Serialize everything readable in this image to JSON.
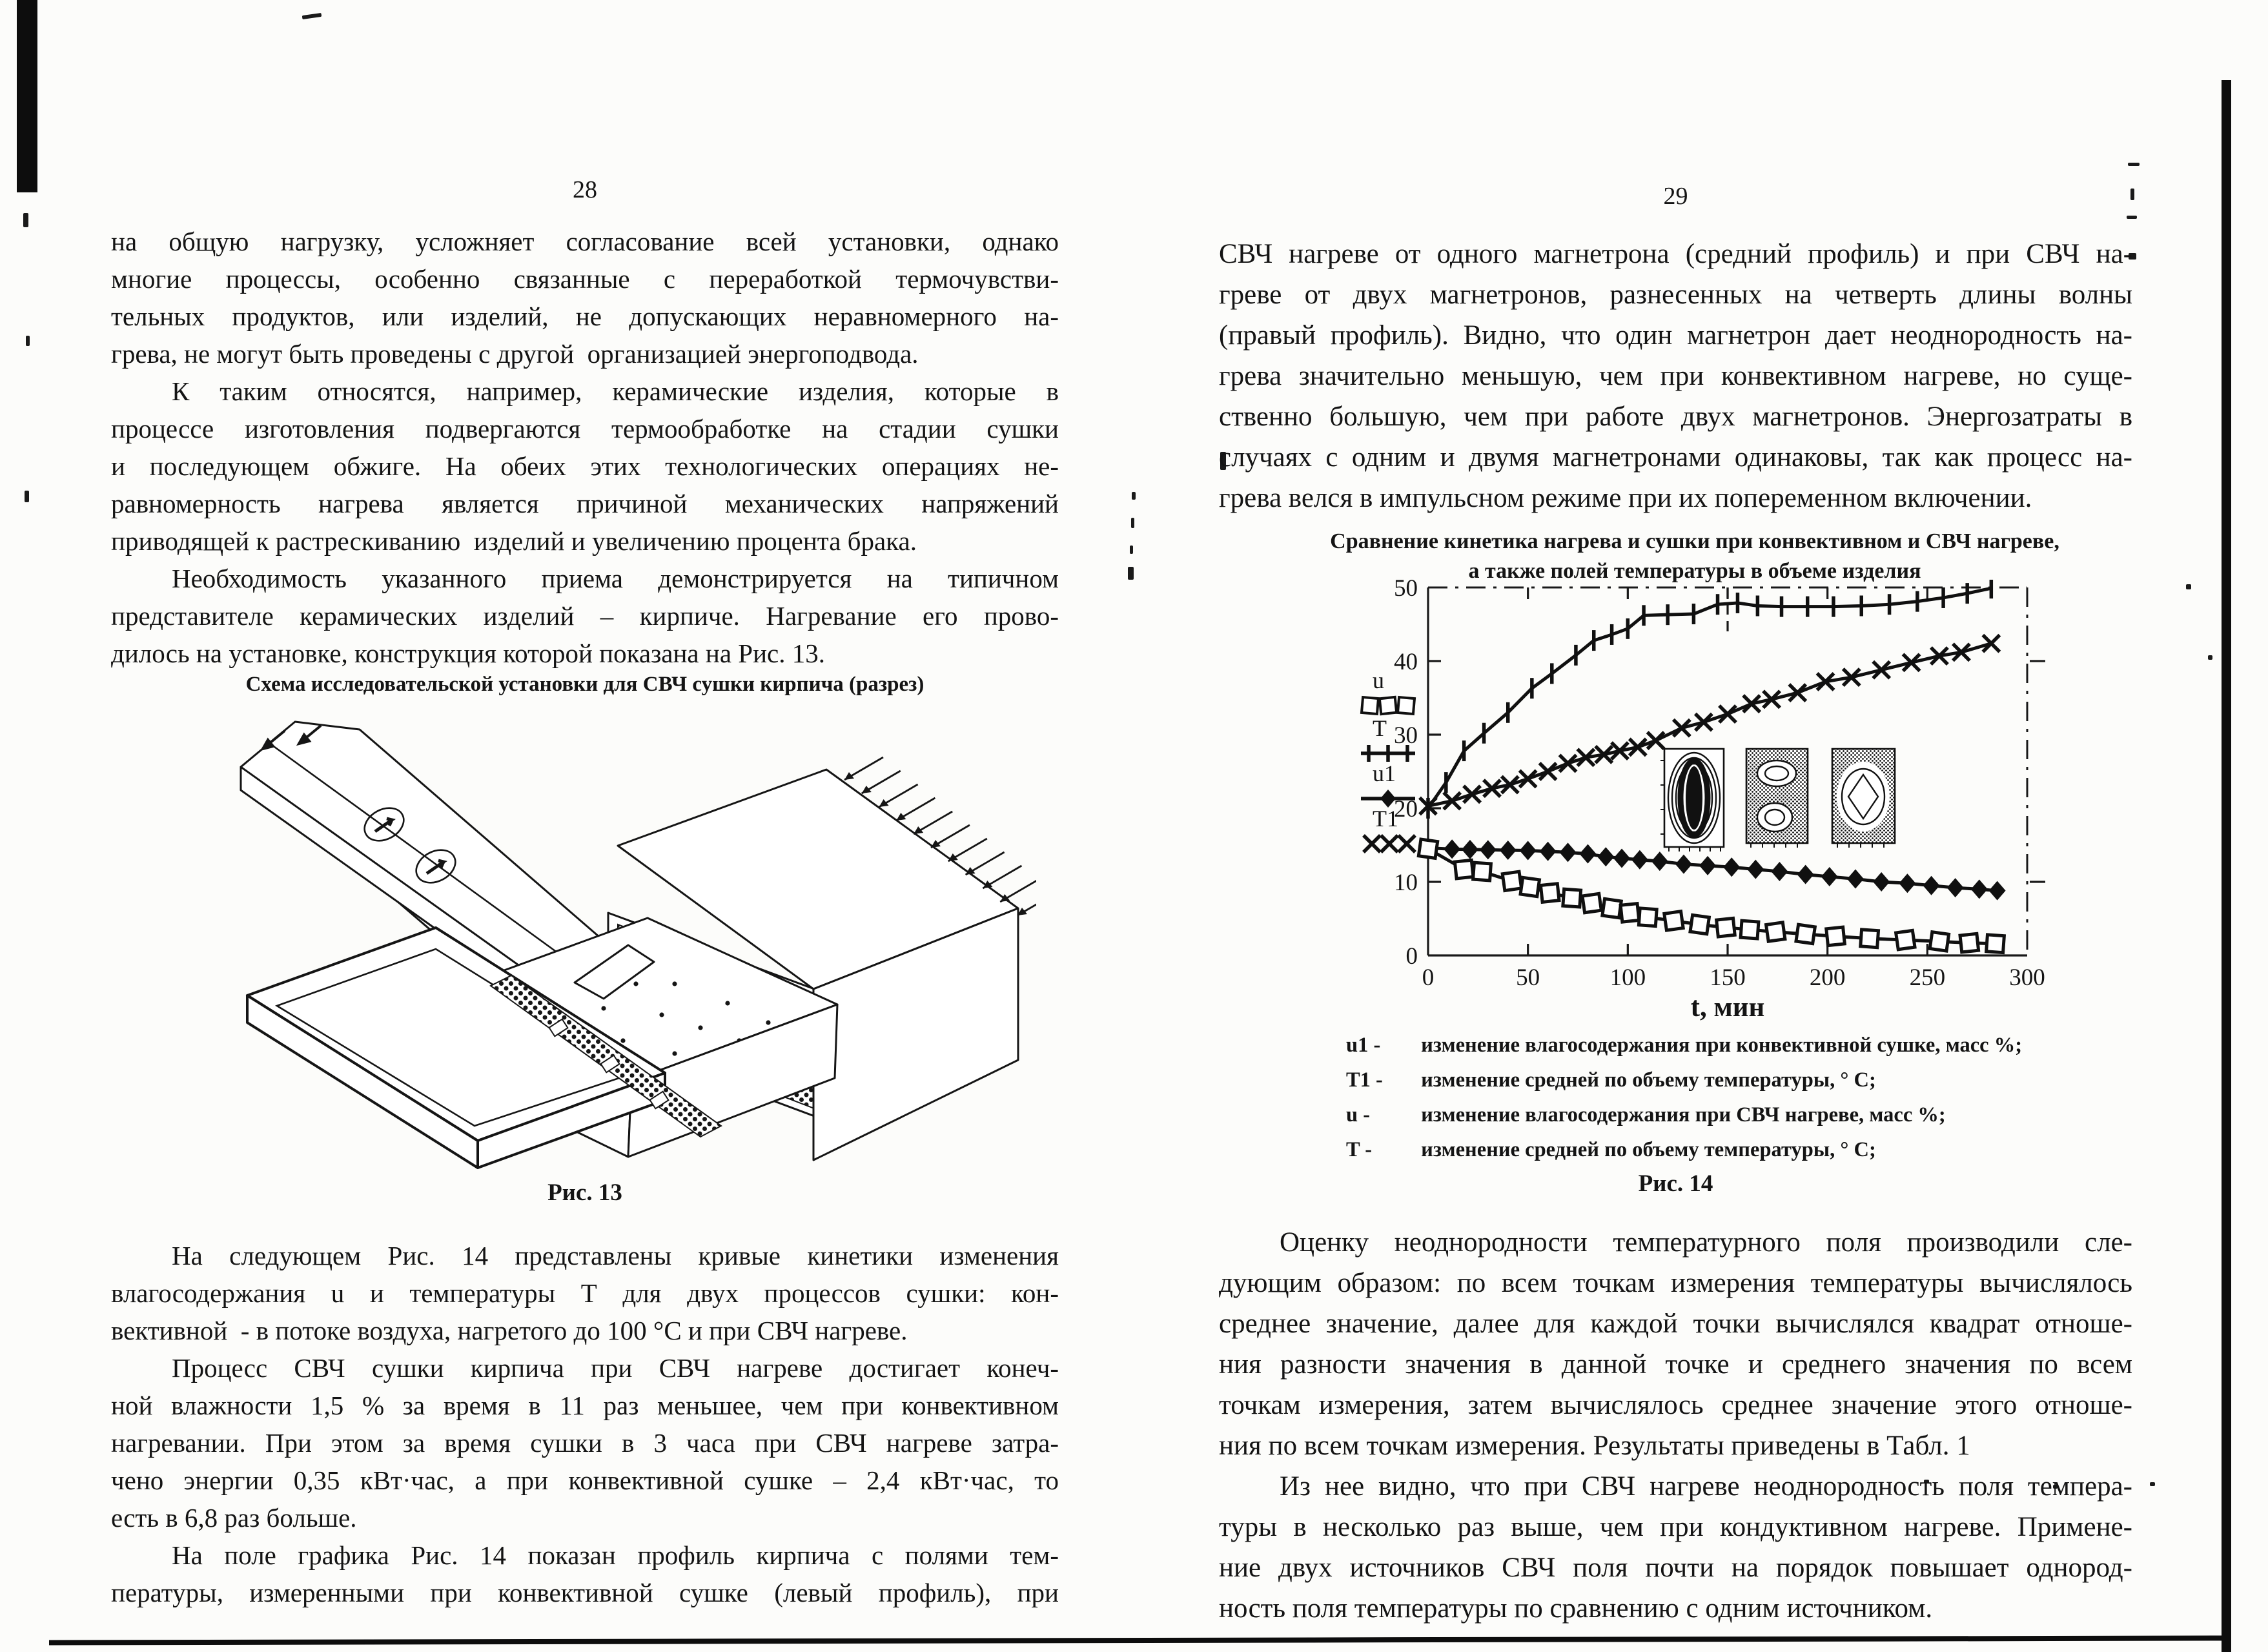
{
  "left_page": {
    "page_number": "28",
    "para1": [
      {
        "text": "на общую нагрузку, усложняет согласование всей установки, однако"
      },
      {
        "text": "многие процессы, особенно связанные с переработкой термочувстви-"
      },
      {
        "text": "тельных продуктов, или изделий, не допускающих неравномерного на-"
      },
      {
        "text": "грева, не могут быть проведены с другой  организацией энергоподвода.",
        "last": true
      },
      {
        "text": "К таким относятся, например, керамические изделия, которые в",
        "indent": true
      },
      {
        "text": "процессе изготовления подвергаются термообработке на стадии сушки"
      },
      {
        "text": "и последующем обжиге. На обеих этих технологических операциях не-"
      },
      {
        "text": "равномерность нагрева является причиной механических напряжений"
      },
      {
        "text": "приводящей к растрескиванию  изделий и увеличению процента брака.",
        "last": true
      },
      {
        "text": "Необходимость указанного приема демонстрируется на типичном",
        "indent": true
      },
      {
        "text": "представителе керамических изделий – кирпиче. Нагревание его прово-"
      },
      {
        "text": "дилось на установке, конструкция которой показана на Рис. 13.",
        "last": true
      }
    ],
    "figure13": {
      "caption": "Схема исследовательской установки для СВЧ сушки кирпича (разрез)",
      "label": "Рис. 13"
    },
    "para2": [
      {
        "text": "На следующем Рис. 14 представлены кривые кинетики изменения",
        "indent": true
      },
      {
        "text": "влагосодержания u и температуры Т для двух процессов сушки: кон-"
      },
      {
        "text": "вективной  - в потоке воздуха, нагретого до 100 °С и при СВЧ нагреве.",
        "last": true
      },
      {
        "text": "Процесс СВЧ сушки кирпича при СВЧ нагреве достигает конеч-",
        "indent": true
      },
      {
        "text": "ной влажности 1,5 % за время в 11 раз меньшее, чем при конвективном"
      },
      {
        "text": "нагревании. При этом за время сушки в 3 часа при СВЧ нагреве затра-"
      },
      {
        "text": "чено энергии 0,35 кВт·час, а при конвективной сушке – 2,4 кВт·час, то"
      },
      {
        "text": "есть в 6,8 раз больше.",
        "last": true
      },
      {
        "text": "На поле графика Рис. 14 показан профиль кирпича с полями тем-",
        "indent": true
      },
      {
        "text": "пературы, измеренными при конвективной сушке (левый профиль), при"
      }
    ]
  },
  "right_page": {
    "page_number": "29",
    "para1": [
      {
        "text": "СВЧ нагреве от одного магнетрона (средний профиль) и при СВЧ на-"
      },
      {
        "text": "греве от двух магнетронов, разнесенных на четверть длины волны"
      },
      {
        "text": "(правый профиль). Видно, что один магнетрон дает неоднородность на-"
      },
      {
        "text": "грева значительно меньшую, чем при конвективном нагреве, но суще-"
      },
      {
        "text": "ственно большую, чем при работе двух магнетронов. Энергозатраты в"
      },
      {
        "text": "случаях с одним и двумя магнетронами одинаковы, так как процесс на-"
      },
      {
        "text": "грева велся в импульсном режиме при их попеременном включении.",
        "last": true
      }
    ],
    "figure14": {
      "title_line1": "Сравнение кинетика нагрева и сушки при конвективном и СВЧ нагреве,",
      "title_line2": "а также полей температуры в объеме изделия",
      "label": "Рис. 14",
      "legend_items": [
        {
          "key": "u1 -",
          "text": "изменение влагосодержания при конвективной сушке, масс %;"
        },
        {
          "key": "T1 -",
          "text": "изменение средней по объему температуры, ° С;"
        },
        {
          "key": "u  -",
          "text": "изменение влагосодержания при СВЧ нагреве, масс %;"
        },
        {
          "key": "T -",
          "text": "изменение средней по объему температуры, ° С;"
        }
      ]
    },
    "para2": [
      {
        "text": "Оценку неоднородности температурного поля производили сле-",
        "indent": true
      },
      {
        "text": "дующим образом: по всем точкам измерения температуры вычислялось"
      },
      {
        "text": "среднее значение, далее для каждой точки вычислялся квадрат отноше-"
      },
      {
        "text": "ния разности значения в данной точке и среднего значения по всем"
      },
      {
        "text": "точкам измерения, затем вычислялось среднее значение этого отноше-"
      },
      {
        "text": "ния по всем точкам измерения. Результаты приведены в Табл. 1",
        "last": true
      },
      {
        "text": "Из нее видно, что при СВЧ нагреве неоднородность поля темпера-",
        "indent": true
      },
      {
        "text": "туры в несколько раз выше, чем при кондуктивном нагреве. Примене-"
      },
      {
        "text": "ние двух источников СВЧ поля почти на порядок повышает однород-"
      },
      {
        "text": "ность поля температуры по сравнению с одним источником.",
        "last": true
      }
    ]
  },
  "chart_data": {
    "type": "line",
    "title": "Сравнение кинетика нагрева и сушки при конвективном и СВЧ нагреве, а также полей температуры в объеме изделия",
    "xlabel": "t, мин",
    "ylabel": "",
    "xlim": [
      0,
      300
    ],
    "ylim": [
      0,
      50
    ],
    "x_ticks": [
      0,
      50,
      100,
      150,
      200,
      250,
      300
    ],
    "y_ticks": [
      0,
      10,
      20,
      30,
      40,
      50
    ],
    "grid": false,
    "legend_position": "left",
    "legend": [
      {
        "label": "u",
        "marker": "square"
      },
      {
        "label": "T",
        "marker": "plus"
      },
      {
        "label": "u1",
        "marker": "diamond"
      },
      {
        "label": "T1",
        "marker": "x"
      }
    ],
    "series": [
      {
        "name": "T",
        "marker": "plus",
        "description": "изменение средней по объему температуры при СВЧ нагреве, ° С",
        "points": [
          [
            0,
            20
          ],
          [
            9,
            23.5
          ],
          [
            18,
            27.8
          ],
          [
            28,
            30.2
          ],
          [
            40,
            33
          ],
          [
            52,
            36.3
          ],
          [
            62,
            38.3
          ],
          [
            74,
            40.8
          ],
          [
            83,
            42.8
          ],
          [
            92,
            43.6
          ],
          [
            100,
            44.4
          ],
          [
            108,
            46.2
          ],
          [
            120,
            46.3
          ],
          [
            133,
            46.4
          ],
          [
            145,
            47.7
          ],
          [
            155,
            47.9
          ],
          [
            165,
            47.5
          ],
          [
            177,
            47.4
          ],
          [
            190,
            47.4
          ],
          [
            203,
            47.4
          ],
          [
            217,
            47.5
          ],
          [
            231,
            47.7
          ],
          [
            245,
            48.1
          ],
          [
            258,
            48.6
          ],
          [
            270,
            49.2
          ],
          [
            282,
            49.9
          ]
        ]
      },
      {
        "name": "T1",
        "marker": "x",
        "description": "изменение средней по объему температуры при конвективной сушке, ° С",
        "points": [
          [
            0,
            20.3
          ],
          [
            12,
            21
          ],
          [
            22,
            21.9
          ],
          [
            32,
            22.7
          ],
          [
            41,
            23.2
          ],
          [
            50,
            24
          ],
          [
            60,
            25
          ],
          [
            70,
            26.1
          ],
          [
            79,
            26.9
          ],
          [
            88,
            27.3
          ],
          [
            96,
            27.8
          ],
          [
            105,
            28.3
          ],
          [
            114,
            29.2
          ],
          [
            127,
            30.9
          ],
          [
            138,
            31.7
          ],
          [
            150,
            32.8
          ],
          [
            162,
            34.2
          ],
          [
            172,
            34.8
          ],
          [
            185,
            35.7
          ],
          [
            199,
            37.2
          ],
          [
            212,
            37.8
          ],
          [
            227,
            38.8
          ],
          [
            242,
            39.8
          ],
          [
            256,
            40.7
          ],
          [
            267,
            41.2
          ],
          [
            282,
            42.4
          ]
        ]
      },
      {
        "name": "u1",
        "marker": "diamond",
        "description": "изменение влагосодержания при конвективной сушке, масс %",
        "points": [
          [
            0,
            14.6
          ],
          [
            12,
            14.45
          ],
          [
            21,
            14.4
          ],
          [
            30,
            14.35
          ],
          [
            40,
            14.3
          ],
          [
            50,
            14.25
          ],
          [
            60,
            14.15
          ],
          [
            70,
            14
          ],
          [
            80,
            13.8
          ],
          [
            89,
            13.4
          ],
          [
            97,
            13.2
          ],
          [
            106,
            13
          ],
          [
            116,
            12.8
          ],
          [
            128,
            12.4
          ],
          [
            140,
            12.2
          ],
          [
            152,
            12
          ],
          [
            164,
            11.7
          ],
          [
            176,
            11.4
          ],
          [
            189,
            11
          ],
          [
            201,
            10.7
          ],
          [
            214,
            10.4
          ],
          [
            227,
            10
          ],
          [
            240,
            9.8
          ],
          [
            252,
            9.5
          ],
          [
            264,
            9.2
          ],
          [
            276,
            9
          ],
          [
            285,
            8.8
          ]
        ]
      },
      {
        "name": "u",
        "marker": "square",
        "description": "изменение влагосодержания при СВЧ нагреве, масс %",
        "points": [
          [
            0,
            14.5
          ],
          [
            18,
            11.7
          ],
          [
            27,
            11.4
          ],
          [
            42,
            10.1
          ],
          [
            51,
            9.3
          ],
          [
            61,
            8.5
          ],
          [
            72,
            7.8
          ],
          [
            82,
            7.1
          ],
          [
            92,
            6.4
          ],
          [
            101,
            5.8
          ],
          [
            110,
            5.2
          ],
          [
            123,
            4.7
          ],
          [
            136,
            4.2
          ],
          [
            149,
            3.8
          ],
          [
            161,
            3.5
          ],
          [
            174,
            3.2
          ],
          [
            189,
            2.9
          ],
          [
            204,
            2.6
          ],
          [
            221,
            2.3
          ],
          [
            239,
            2.1
          ],
          [
            256,
            1.9
          ],
          [
            271,
            1.7
          ],
          [
            284,
            1.6
          ]
        ]
      }
    ]
  }
}
